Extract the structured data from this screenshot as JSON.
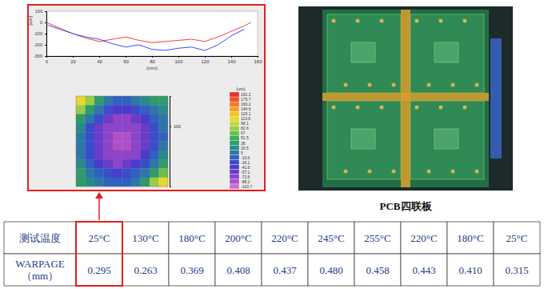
{
  "chart_data": [
    {
      "type": "line",
      "x_label": "(mm)",
      "y_label": "[um]",
      "x": [
        0,
        10,
        20,
        30,
        40,
        50,
        60,
        70,
        80,
        90,
        100,
        110,
        120,
        130,
        140,
        150,
        155
      ],
      "xlim": [
        0,
        160
      ],
      "xticks": [
        0,
        20,
        40,
        60,
        80,
        100,
        120,
        140,
        160
      ],
      "ylim": [
        -300,
        100
      ],
      "yticks": [
        -300,
        -200,
        -100,
        0,
        100
      ],
      "grid": false,
      "series": [
        {
          "color": "#ff3b3b",
          "values": [
            0,
            -50,
            -100,
            -140,
            -170,
            -150,
            -130,
            -160,
            -180,
            -170,
            -160,
            -150,
            -170,
            -130,
            -80,
            -30,
            0
          ]
        },
        {
          "color": "#3b4cff",
          "values": [
            -20,
            -60,
            -100,
            -130,
            -150,
            -190,
            -220,
            -200,
            -240,
            -250,
            -230,
            -220,
            -250,
            -200,
            -120,
            -60,
            null
          ]
        }
      ]
    },
    {
      "type": "heatmap",
      "ylim": [
        0,
        150
      ],
      "yticks": [
        100
      ],
      "cells": [
        [
          110,
          80,
          40,
          10,
          -10,
          -10,
          5,
          20,
          30,
          40
        ],
        [
          80,
          40,
          0,
          -30,
          -45,
          -45,
          -30,
          -10,
          10,
          20
        ],
        [
          40,
          5,
          -30,
          -55,
          -65,
          -65,
          -55,
          -35,
          -10,
          10
        ],
        [
          15,
          -20,
          -50,
          -70,
          -80,
          -80,
          -70,
          -50,
          -25,
          0
        ],
        [
          5,
          -30,
          -60,
          -80,
          -95,
          -90,
          -80,
          -60,
          -30,
          -5
        ],
        [
          5,
          -30,
          -60,
          -80,
          -90,
          -95,
          -80,
          -55,
          -25,
          5
        ],
        [
          10,
          -20,
          -50,
          -70,
          -80,
          -80,
          -65,
          -45,
          -15,
          15
        ],
        [
          20,
          -5,
          -35,
          -55,
          -65,
          -60,
          -45,
          -25,
          5,
          35
        ],
        [
          30,
          10,
          -10,
          -30,
          -35,
          -30,
          -15,
          10,
          40,
          70
        ],
        [
          40,
          25,
          10,
          -5,
          -10,
          -5,
          10,
          40,
          80,
          110
        ]
      ],
      "colorbar_label": "(um)",
      "colorbar_ticks": [
        191.2,
        175.7,
        160.2,
        144.6,
        129.1,
        113.6,
        98.1,
        82.6,
        67,
        51.5,
        36,
        20.5,
        5,
        -10.6,
        -26.1,
        -41.6,
        -57.1,
        -72.6,
        -88.2,
        -103.7
      ],
      "colors": [
        "#e8322a",
        "#f0552a",
        "#f47a2a",
        "#f6a02a",
        "#f5c02a",
        "#e8d830",
        "#c8d83a",
        "#9ccc45",
        "#6cbf4e",
        "#3fae55",
        "#2f9a6a",
        "#2a8a8a",
        "#2f76a8",
        "#3060c0",
        "#3a4cc8",
        "#4a3cc8",
        "#6a3cc8",
        "#8c44c8",
        "#b050c8",
        "#d070d0"
      ]
    }
  ],
  "photo_caption": "PCB四联板",
  "table": {
    "highlighted_column": 1,
    "rows": [
      [
        "测试温度",
        "25°C",
        "130°C",
        "180°C",
        "200°C",
        "220°C",
        "245°C",
        "255°C",
        "220°C",
        "180°C",
        "25°C"
      ],
      [
        [
          "WARPAGE",
          "（mm）"
        ],
        "0.295",
        "0.263",
        "0.369",
        "0.408",
        "0.437",
        "0.480",
        "0.458",
        "0.443",
        "0.410",
        "0.315"
      ]
    ]
  }
}
